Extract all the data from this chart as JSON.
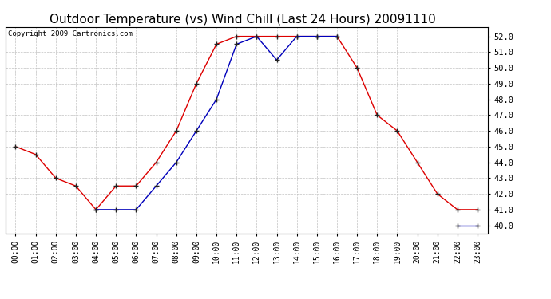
{
  "title": "Outdoor Temperature (vs) Wind Chill (Last 24 Hours) 20091110",
  "copyright": "Copyright 2009 Cartronics.com",
  "x_labels": [
    "00:00",
    "01:00",
    "02:00",
    "03:00",
    "04:00",
    "05:00",
    "06:00",
    "07:00",
    "08:00",
    "09:00",
    "10:00",
    "11:00",
    "12:00",
    "13:00",
    "14:00",
    "15:00",
    "16:00",
    "17:00",
    "18:00",
    "19:00",
    "20:00",
    "21:00",
    "22:00",
    "23:00"
  ],
  "temp_red": [
    45.0,
    44.5,
    43.0,
    42.5,
    41.0,
    42.5,
    42.5,
    44.0,
    46.0,
    49.0,
    51.5,
    52.0,
    52.0,
    52.0,
    52.0,
    52.0,
    52.0,
    50.0,
    47.0,
    46.0,
    44.0,
    42.0,
    41.0,
    41.0
  ],
  "wind_chill_blue": [
    null,
    null,
    null,
    null,
    41.0,
    41.0,
    41.0,
    42.5,
    44.0,
    46.0,
    48.0,
    51.5,
    52.0,
    50.5,
    52.0,
    52.0,
    52.0,
    null,
    null,
    null,
    null,
    null,
    40.0,
    40.0
  ],
  "ylim": [
    39.5,
    52.6
  ],
  "yticks": [
    40.0,
    41.0,
    42.0,
    43.0,
    44.0,
    45.0,
    46.0,
    47.0,
    48.0,
    49.0,
    50.0,
    51.0,
    52.0
  ],
  "red_color": "#dd0000",
  "blue_color": "#0000bb",
  "grid_color": "#bbbbbb",
  "bg_color": "#ffffff",
  "title_fontsize": 11,
  "copyright_fontsize": 6.5,
  "tick_fontsize": 7,
  "ytick_fontsize": 7.5
}
